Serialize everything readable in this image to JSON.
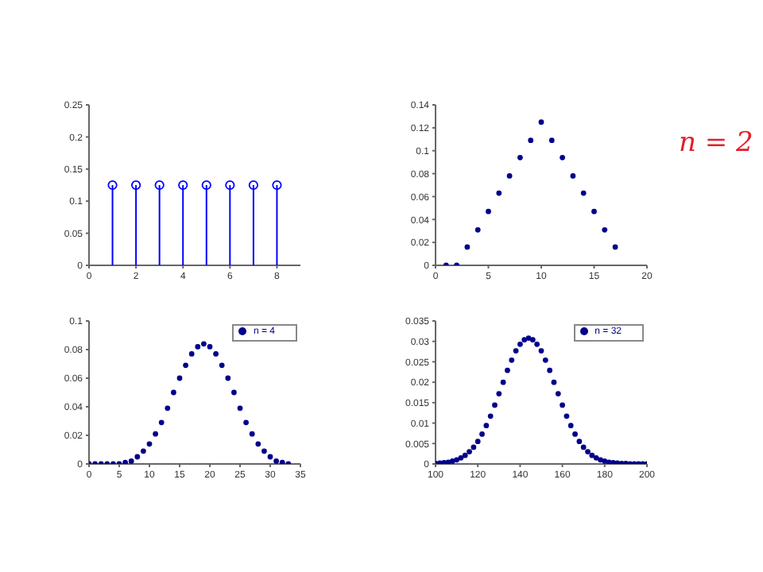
{
  "chart_data": [
    {
      "type": "lollipop",
      "x": [
        1,
        2,
        3,
        4,
        5,
        6,
        7,
        8
      ],
      "series": [
        {
          "color": "#0000ff",
          "values": [
            0.125,
            0.125,
            0.125,
            0.125,
            0.125,
            0.125,
            0.125,
            0.125
          ]
        }
      ],
      "xlim": [
        0,
        9
      ],
      "xticks": [
        0,
        2,
        4,
        6,
        8
      ],
      "ylim": [
        0,
        0.25
      ],
      "yticks": [
        0,
        0.05,
        0.1,
        0.15,
        0.2,
        0.25
      ],
      "marker": "circle"
    },
    {
      "type": "scatter",
      "x": [
        1,
        2,
        3,
        4,
        5,
        6,
        7,
        8,
        9,
        10,
        11,
        12,
        13,
        14,
        15,
        16,
        17
      ],
      "series": [
        {
          "color": "#00008b",
          "values": [
            0,
            0,
            0.016,
            0.031,
            0.047,
            0.063,
            0.078,
            0.094,
            0.109,
            0.125,
            0.109,
            0.094,
            0.078,
            0.063,
            0.047,
            0.031,
            0.016
          ]
        }
      ],
      "xlim": [
        0,
        20
      ],
      "xticks": [
        0,
        5,
        10,
        15,
        20
      ],
      "ylim": [
        0,
        0.14
      ],
      "yticks": [
        0,
        0.02,
        0.04,
        0.06,
        0.08,
        0.1,
        0.12,
        0.14
      ],
      "marker": "circle",
      "annotations": [
        "n = 2"
      ]
    },
    {
      "type": "scatter",
      "x": [
        0,
        1,
        2,
        3,
        4,
        5,
        6,
        7,
        8,
        9,
        10,
        11,
        12,
        13,
        14,
        15,
        16,
        17,
        18,
        19,
        20,
        21,
        22,
        23,
        24,
        25,
        26,
        27,
        28,
        29,
        30,
        31,
        32,
        33
      ],
      "series": [
        {
          "name": "n = 4",
          "color": "#00008b",
          "values": [
            0,
            0,
            0,
            0,
            0,
            0,
            0.001,
            0.002,
            0.005,
            0.009,
            0.014,
            0.021,
            0.029,
            0.039,
            0.05,
            0.06,
            0.069,
            0.077,
            0.082,
            0.084,
            0.082,
            0.077,
            0.069,
            0.06,
            0.05,
            0.039,
            0.029,
            0.021,
            0.014,
            0.009,
            0.005,
            0.002,
            0.001,
            0
          ]
        }
      ],
      "xlim": [
        0,
        35
      ],
      "xticks": [
        0,
        5,
        10,
        15,
        20,
        25,
        30,
        35
      ],
      "ylim": [
        0,
        0.1
      ],
      "yticks": [
        0,
        0.02,
        0.04,
        0.06,
        0.08,
        0.1
      ],
      "marker": "circle",
      "legend": "top right"
    },
    {
      "type": "scatter",
      "x": [
        100,
        102,
        104,
        106,
        108,
        110,
        112,
        114,
        116,
        118,
        120,
        122,
        124,
        126,
        128,
        130,
        132,
        134,
        136,
        138,
        140,
        142,
        144,
        146,
        148,
        150,
        152,
        154,
        156,
        158,
        160,
        162,
        164,
        166,
        168,
        170,
        172,
        174,
        176,
        178,
        180,
        182,
        184,
        186,
        188,
        190,
        192,
        194,
        196,
        198,
        200
      ],
      "series": [
        {
          "name": "n = 32",
          "color": "#00008b",
          "values": [
            0.0001,
            0.0002,
            0.0003,
            0.0004,
            0.0007,
            0.001,
            0.0015,
            0.0021,
            0.003,
            0.0041,
            0.0055,
            0.0073,
            0.0094,
            0.0117,
            0.0144,
            0.0172,
            0.02,
            0.0229,
            0.0254,
            0.0277,
            0.0293,
            0.0304,
            0.0308,
            0.0304,
            0.0293,
            0.0277,
            0.0254,
            0.0229,
            0.02,
            0.0172,
            0.0144,
            0.0117,
            0.0094,
            0.0073,
            0.0055,
            0.0041,
            0.003,
            0.0021,
            0.0015,
            0.001,
            0.0007,
            0.0004,
            0.0003,
            0.0002,
            0.0001,
            0.0001,
            0,
            0,
            0,
            0,
            0
          ]
        }
      ],
      "xlim": [
        100,
        200
      ],
      "xticks": [
        100,
        120,
        140,
        160,
        180,
        200
      ],
      "ylim": [
        0,
        0.035
      ],
      "yticks": [
        0,
        0.005,
        0.01,
        0.015,
        0.02,
        0.025,
        0.03,
        0.035
      ],
      "marker": "circle",
      "legend": "top right"
    }
  ]
}
